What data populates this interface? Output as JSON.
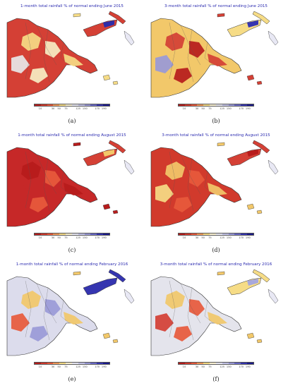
{
  "panels": [
    {
      "title": "1-month total rainfall % of normal ending June 2015",
      "label": "(a)",
      "mainland": "#d44035",
      "patches": [
        "#f6dc86",
        "#f7eec4",
        "#2d2da8",
        "#e8e8e8"
      ],
      "islands": "#d44035"
    },
    {
      "title": "3-month total rainfall % of normal ending June 2015",
      "label": "(b)",
      "mainland": "#f2c86a",
      "patches": [
        "#d44035",
        "#b71c1c",
        "#3535b0",
        "#9a9ad8"
      ],
      "islands": "#f6dc86"
    },
    {
      "title": "1-month total rainfall % of normal ending August 2015",
      "label": "(c)",
      "mainland": "#c62828",
      "patches": [
        "#b71c1c",
        "#e85a3c",
        "#f2c86a",
        "#c62828"
      ],
      "islands": "#d44035"
    },
    {
      "title": "3-month total rainfall % of normal ending August 2015",
      "label": "(d)",
      "mainland": "#d13a2c",
      "patches": [
        "#f2c86a",
        "#e85a3c",
        "#b71c1c",
        "#f6dc86"
      ],
      "islands": "#d44035"
    },
    {
      "title": "1-month total rainfall % of normal ending February 2016",
      "label": "(e)",
      "mainland": "#dcdcec",
      "patches": [
        "#f2c86a",
        "#9a9ad8",
        "#3535b0",
        "#e85a3c"
      ],
      "islands": "#3535b0"
    },
    {
      "title": "3-month total rainfall % of normal ending February 2016",
      "label": "(f)",
      "mainland": "#e4e4ec",
      "patches": [
        "#f2c86a",
        "#e85a3c",
        "#a8a8dc",
        "#d44035"
      ],
      "islands": "#f6dc86"
    }
  ],
  "colorbar": {
    "colors": [
      "#b71c1c",
      "#d13a2c",
      "#e85a3c",
      "#f29b5c",
      "#f6dc86",
      "#fbf3d4",
      "#e8e8f4",
      "#c4c4e8",
      "#9a9ad8",
      "#6a6ac8",
      "#3535b0",
      "#1a1a8c"
    ],
    "ticks": [
      "10",
      "30",
      "50",
      "75",
      "125",
      "150",
      "170",
      "190"
    ]
  }
}
